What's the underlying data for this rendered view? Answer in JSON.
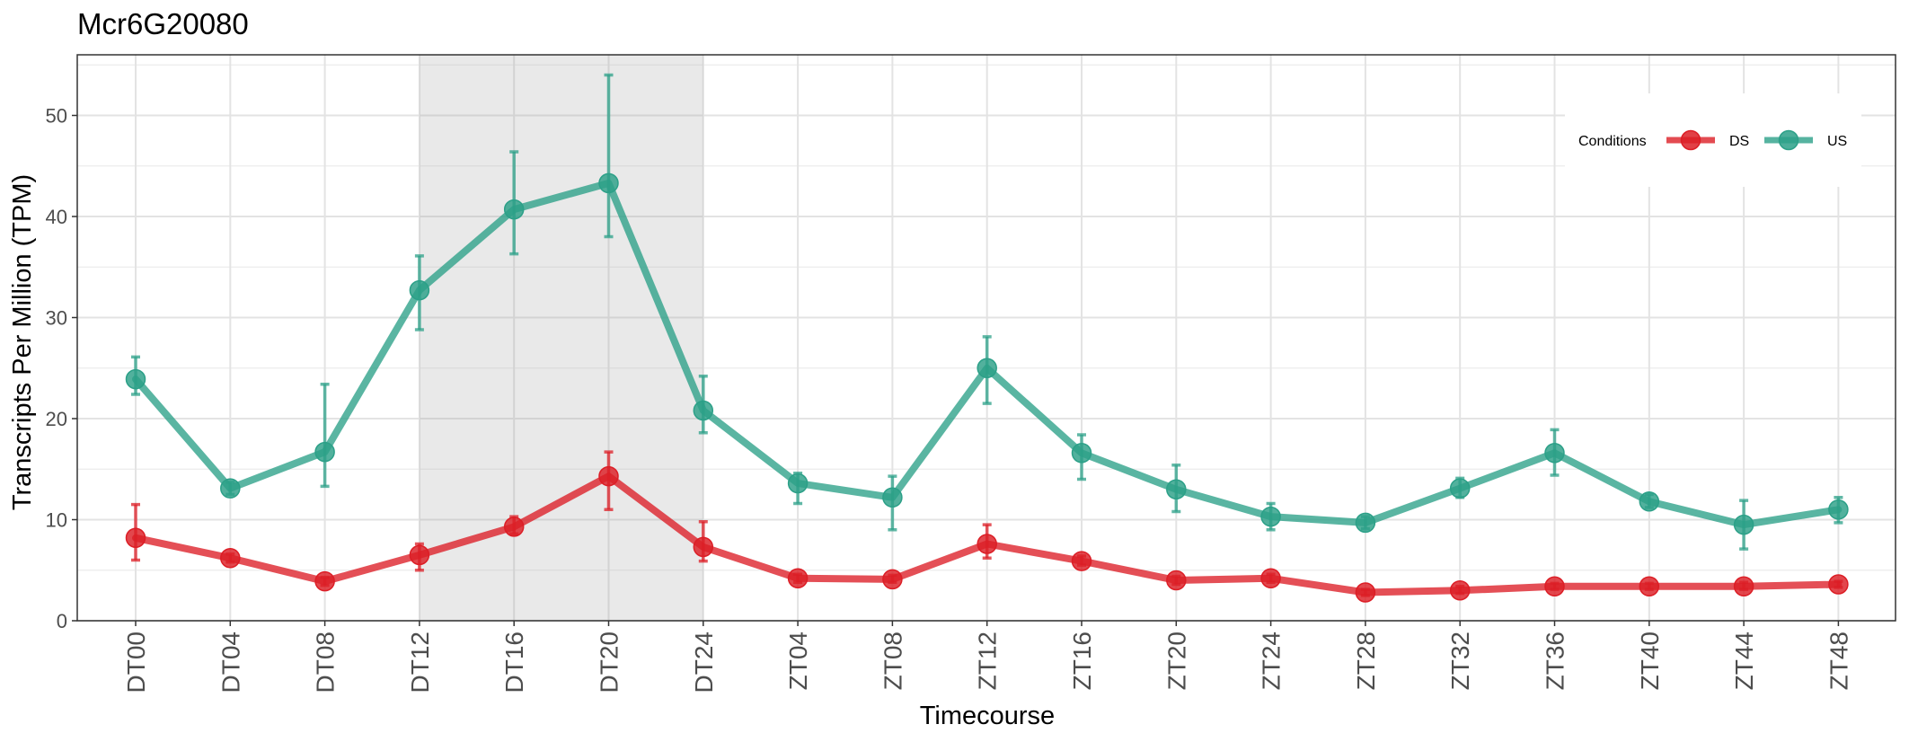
{
  "chart_data": {
    "type": "line",
    "title": "Mcr6G20080",
    "xlabel": "Timecourse",
    "ylabel": "Transcripts Per Million (TPM)",
    "ylim": [
      0,
      56
    ],
    "yticks": [
      0,
      10,
      20,
      30,
      40,
      50
    ],
    "grid": true,
    "shaded_region": {
      "from": "DT12",
      "to": "DT24"
    },
    "categories": [
      "DT00",
      "DT04",
      "DT08",
      "DT12",
      "DT16",
      "DT20",
      "DT24",
      "ZT04",
      "ZT08",
      "ZT12",
      "ZT16",
      "ZT20",
      "ZT24",
      "ZT28",
      "ZT32",
      "ZT36",
      "ZT40",
      "ZT44",
      "ZT48"
    ],
    "legend": {
      "title": "Conditions",
      "position": "top-right"
    },
    "series": [
      {
        "name": "DS",
        "color": "#dc1e26",
        "values": [
          8.2,
          6.2,
          3.9,
          6.5,
          9.3,
          14.3,
          7.3,
          4.2,
          4.1,
          7.6,
          5.9,
          4.0,
          4.2,
          2.8,
          3.0,
          3.4,
          3.4,
          3.4,
          3.6
        ],
        "err_low": [
          6.0,
          5.8,
          3.5,
          5.0,
          8.6,
          11.0,
          5.9,
          3.8,
          3.8,
          6.2,
          5.5,
          3.6,
          3.8,
          2.5,
          2.7,
          3.1,
          3.1,
          3.1,
          3.3
        ],
        "err_high": [
          11.5,
          6.6,
          4.3,
          7.6,
          10.3,
          16.7,
          9.8,
          4.6,
          4.5,
          9.5,
          6.4,
          4.4,
          4.6,
          3.1,
          3.4,
          3.7,
          3.7,
          3.8,
          3.9
        ]
      },
      {
        "name": "US",
        "color": "#2ca088",
        "values": [
          23.9,
          13.1,
          16.7,
          32.7,
          40.7,
          43.3,
          20.8,
          13.6,
          12.2,
          25.0,
          16.6,
          13.0,
          10.3,
          9.7,
          13.1,
          16.6,
          11.8,
          9.5,
          11.0
        ],
        "err_low": [
          22.4,
          12.5,
          13.3,
          28.8,
          36.3,
          38.0,
          18.6,
          11.6,
          9.0,
          21.5,
          14.0,
          10.8,
          9.0,
          9.1,
          12.2,
          14.4,
          11.2,
          7.1,
          9.7
        ],
        "err_high": [
          26.1,
          13.7,
          23.4,
          36.1,
          46.4,
          54.0,
          24.2,
          14.6,
          14.3,
          28.1,
          18.4,
          15.4,
          11.6,
          10.3,
          14.1,
          18.9,
          12.5,
          11.9,
          12.2
        ]
      }
    ]
  }
}
